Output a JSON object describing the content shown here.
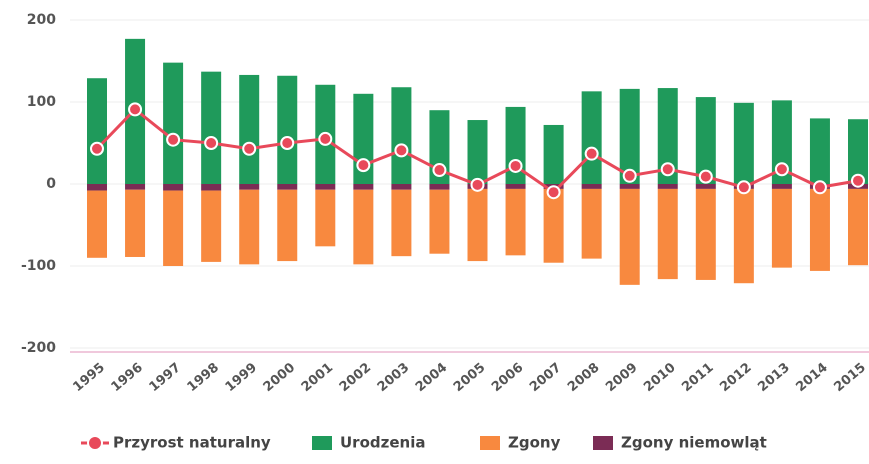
{
  "chart_data": {
    "type": "bar",
    "categories": [
      "1995",
      "1996",
      "1997",
      "1998",
      "1999",
      "2000",
      "2001",
      "2002",
      "2003",
      "2004",
      "2005",
      "2006",
      "2007",
      "2008",
      "2009",
      "2010",
      "2011",
      "2012",
      "2013",
      "2014",
      "2015"
    ],
    "series": [
      {
        "name": "Przyrost naturalny",
        "type": "line",
        "color": "#e8495a",
        "values": [
          43,
          91,
          54,
          50,
          43,
          50,
          55,
          23,
          41,
          17,
          -1,
          22,
          -10,
          37,
          10,
          18,
          9,
          -4,
          18,
          -4,
          4
        ]
      },
      {
        "name": "Urodzenia",
        "color": "#1f9a5b",
        "values": [
          129,
          177,
          148,
          137,
          133,
          132,
          121,
          110,
          118,
          90,
          78,
          94,
          72,
          113,
          116,
          117,
          106,
          99,
          102,
          80,
          79
        ]
      },
      {
        "name": "Zgony",
        "color": "#f8893f",
        "values": [
          -82,
          -82,
          -92,
          -87,
          -91,
          -87,
          -69,
          -91,
          -81,
          -78,
          -88,
          -81,
          -90,
          -85,
          -117,
          -110,
          -111,
          -115,
          -96,
          -100,
          -93
        ]
      },
      {
        "name": "Zgony niemowląt",
        "color": "#7b2c55",
        "values": [
          -8,
          -7,
          -8,
          -8,
          -7,
          -7,
          -7,
          -7,
          -7,
          -7,
          -6,
          -6,
          -6,
          -6,
          -6,
          -6,
          -6,
          -6,
          -6,
          -6,
          -6
        ]
      }
    ],
    "ylim": [
      -200,
      200
    ],
    "yticks": [
      -200,
      -100,
      0,
      100,
      200
    ],
    "grid": true
  }
}
